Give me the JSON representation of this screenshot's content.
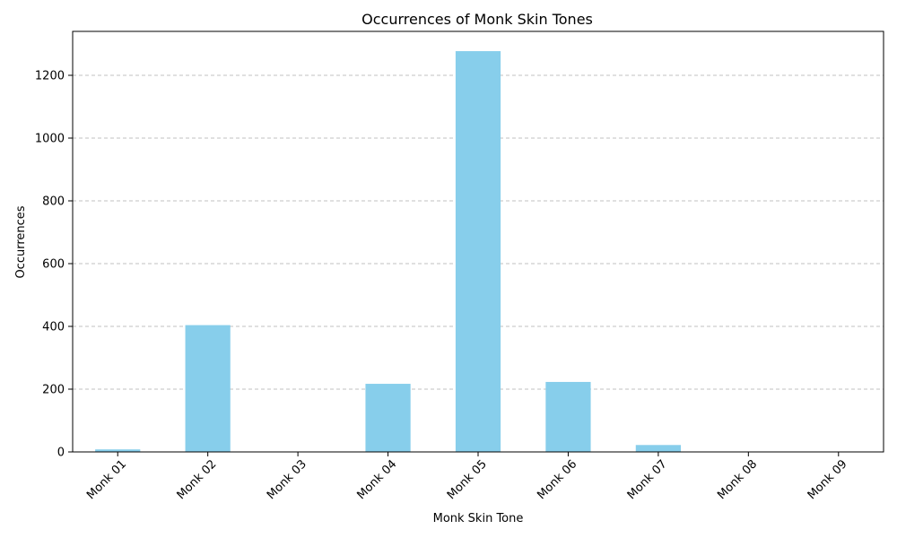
{
  "chart_data": {
    "type": "bar",
    "title": "Occurrences of Monk Skin Tones",
    "xlabel": "Monk Skin Tone",
    "ylabel": "Occurrences",
    "categories": [
      "Monk 01",
      "Monk 02",
      "Monk 03",
      "Monk 04",
      "Monk 05",
      "Monk 06",
      "Monk 07",
      "Monk 08",
      "Monk 09"
    ],
    "values": [
      8,
      404,
      1,
      217,
      1277,
      223,
      22,
      1,
      1
    ],
    "ylim": [
      0,
      1340
    ],
    "yticks": [
      0,
      200,
      400,
      600,
      800,
      1000,
      1200
    ],
    "grid": "y-dashed",
    "bar_color": "#87CEEB",
    "grid_color": "#c0c0c0",
    "x_tick_rotation": 45
  }
}
